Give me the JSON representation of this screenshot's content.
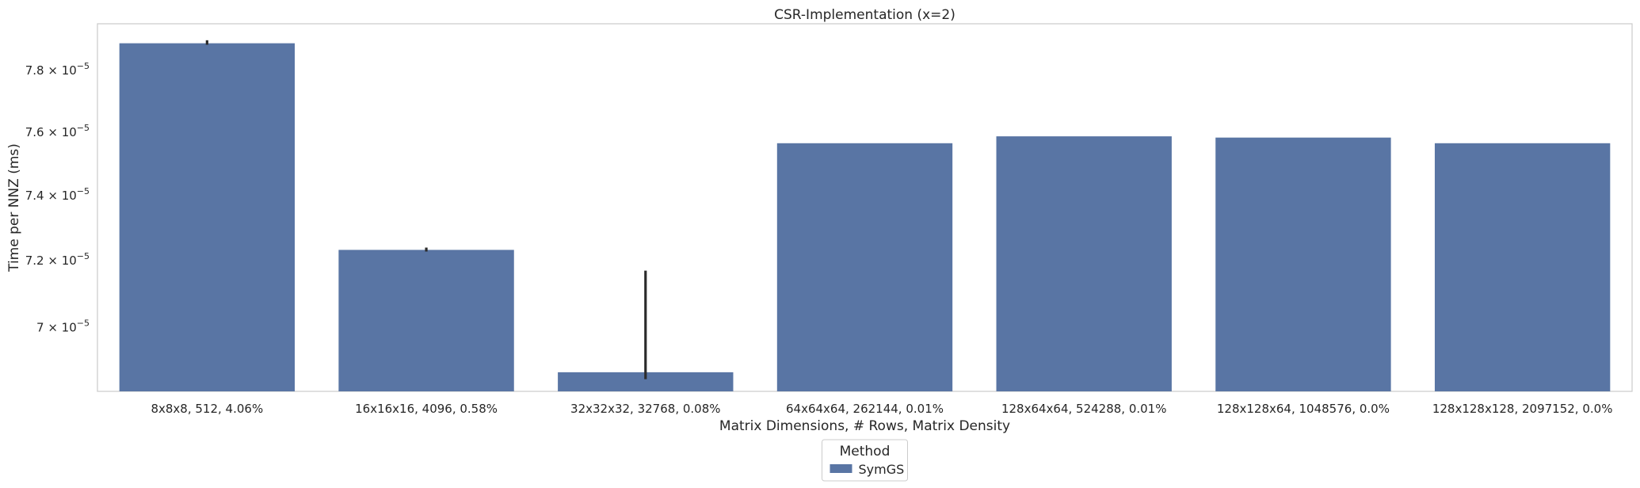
{
  "chart_data": {
    "type": "bar",
    "title": "CSR-Implementation (x=2)",
    "xlabel": "Matrix Dimensions, # Rows, Matrix Density",
    "ylabel": "Time per NNZ (ms)",
    "y_scale": "log",
    "ylim": [
      6.815e-05,
      7.955e-05
    ],
    "y_ticks": [
      {
        "value": 7e-05,
        "label": "7 × 10",
        "exp": "−5"
      },
      {
        "value": 7.2e-05,
        "label": "7.2 × 10",
        "exp": "−5"
      },
      {
        "value": 7.4e-05,
        "label": "7.4 × 10",
        "exp": "−5"
      },
      {
        "value": 7.6e-05,
        "label": "7.6 × 10",
        "exp": "−5"
      },
      {
        "value": 7.8e-05,
        "label": "7.8 × 10",
        "exp": "−5"
      }
    ],
    "categories": [
      "8x8x8, 512, 4.06%",
      "16x16x16, 4096, 0.58%",
      "32x32x32, 32768, 0.08%",
      "64x64x64, 262144, 0.01%",
      "128x64x64, 524288, 0.01%",
      "128x128x64, 1048576, 0.0%",
      "128x128x128, 2097152, 0.0%"
    ],
    "series": [
      {
        "name": "SymGS",
        "color": "#5975a4",
        "values": [
          7.89e-05,
          7.233e-05,
          6.87e-05,
          7.565e-05,
          7.587e-05,
          7.583e-05,
          7.565e-05
        ],
        "error_low": [
          7.885e-05,
          7.228e-05,
          6.85e-05,
          null,
          null,
          null,
          null
        ],
        "error_high": [
          7.9e-05,
          7.24e-05,
          7.17e-05,
          null,
          null,
          null,
          null
        ]
      }
    ],
    "grid": false,
    "legend": {
      "title": "Method",
      "placement": "bottom-center"
    }
  }
}
